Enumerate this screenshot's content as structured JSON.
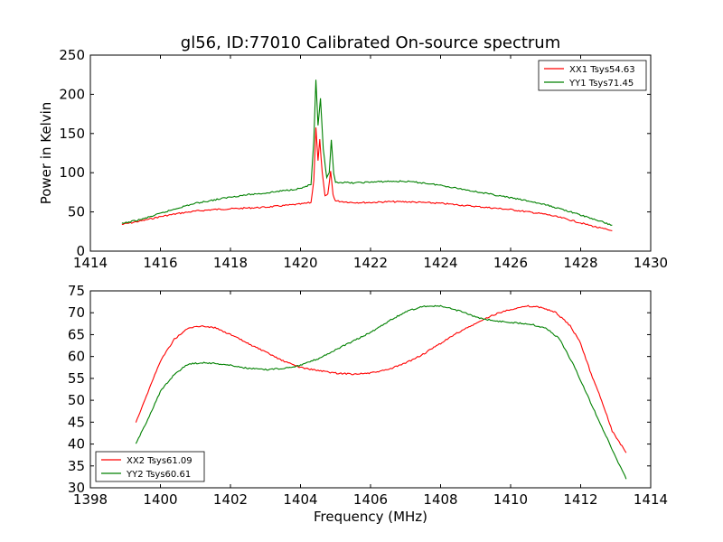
{
  "chart_data": [
    {
      "type": "line",
      "title": "gl56, ID:77010 Calibrated On-source spectrum",
      "xlabel": "",
      "ylabel": "Power in Kelvin",
      "xlim": [
        1414,
        1430
      ],
      "ylim": [
        0,
        250
      ],
      "xticks": [
        1414,
        1416,
        1418,
        1420,
        1422,
        1424,
        1426,
        1428,
        1430
      ],
      "yticks": [
        0,
        50,
        100,
        150,
        200,
        250
      ],
      "grid": false,
      "legend_position": "top-right",
      "series": [
        {
          "name": "XX1 Tsys54.63",
          "color": "#ff0000",
          "points": [
            [
              1414.9,
              34
            ],
            [
              1415.5,
              39
            ],
            [
              1416,
              44
            ],
            [
              1416.5,
              48
            ],
            [
              1417,
              51
            ],
            [
              1417.5,
              53
            ],
            [
              1418,
              54
            ],
            [
              1418.5,
              55
            ],
            [
              1419,
              56
            ],
            [
              1419.5,
              58
            ],
            [
              1420,
              60
            ],
            [
              1420.3,
              62
            ],
            [
              1420.38,
              90
            ],
            [
              1420.44,
              158
            ],
            [
              1420.5,
              115
            ],
            [
              1420.55,
              142
            ],
            [
              1420.62,
              100
            ],
            [
              1420.7,
              70
            ],
            [
              1420.78,
              72
            ],
            [
              1420.86,
              102
            ],
            [
              1420.93,
              72
            ],
            [
              1421,
              64
            ],
            [
              1421.5,
              62
            ],
            [
              1422,
              62
            ],
            [
              1422.5,
              63
            ],
            [
              1423,
              63
            ],
            [
              1423.5,
              62
            ],
            [
              1424,
              61
            ],
            [
              1424.5,
              59
            ],
            [
              1425,
              57
            ],
            [
              1425.5,
              55
            ],
            [
              1426,
              53
            ],
            [
              1426.5,
              50
            ],
            [
              1427,
              47
            ],
            [
              1427.5,
              42
            ],
            [
              1428,
              36
            ],
            [
              1428.5,
              30
            ],
            [
              1428.9,
              26
            ]
          ]
        },
        {
          "name": "YY1 Tsys71.45",
          "color": "#008000",
          "points": [
            [
              1414.9,
              35
            ],
            [
              1415.5,
              41
            ],
            [
              1416,
              48
            ],
            [
              1416.5,
              55
            ],
            [
              1417,
              61
            ],
            [
              1417.5,
              65
            ],
            [
              1418,
              69
            ],
            [
              1418.5,
              72
            ],
            [
              1419,
              74
            ],
            [
              1419.5,
              77
            ],
            [
              1420,
              80
            ],
            [
              1420.3,
              85
            ],
            [
              1420.38,
              140
            ],
            [
              1420.44,
              218
            ],
            [
              1420.5,
              160
            ],
            [
              1420.57,
              195
            ],
            [
              1420.65,
              130
            ],
            [
              1420.75,
              93
            ],
            [
              1420.82,
              100
            ],
            [
              1420.88,
              141
            ],
            [
              1420.95,
              98
            ],
            [
              1421,
              88
            ],
            [
              1421.5,
              87
            ],
            [
              1422,
              88
            ],
            [
              1422.5,
              89
            ],
            [
              1423,
              89
            ],
            [
              1423.5,
              87
            ],
            [
              1424,
              84
            ],
            [
              1424.5,
              80
            ],
            [
              1425,
              76
            ],
            [
              1425.5,
              72
            ],
            [
              1426,
              68
            ],
            [
              1426.5,
              64
            ],
            [
              1427,
              59
            ],
            [
              1427.5,
              53
            ],
            [
              1428,
              46
            ],
            [
              1428.5,
              39
            ],
            [
              1428.9,
              33
            ]
          ]
        }
      ]
    },
    {
      "type": "line",
      "title": "",
      "xlabel": "Frequency (MHz)",
      "ylabel": "",
      "xlim": [
        1398,
        1414
      ],
      "ylim": [
        30,
        75
      ],
      "xticks": [
        1398,
        1400,
        1402,
        1404,
        1406,
        1408,
        1410,
        1412,
        1414
      ],
      "yticks": [
        30,
        35,
        40,
        45,
        50,
        55,
        60,
        65,
        70,
        75
      ],
      "grid": false,
      "legend_position": "bottom-left",
      "series": [
        {
          "name": "XX2 Tsys61.09",
          "color": "#ff0000",
          "points": [
            [
              1399.3,
              45
            ],
            [
              1399.6,
              51
            ],
            [
              1400,
              59
            ],
            [
              1400.4,
              64
            ],
            [
              1400.8,
              66.5
            ],
            [
              1401.2,
              67
            ],
            [
              1401.6,
              66.5
            ],
            [
              1402,
              65
            ],
            [
              1402.5,
              63
            ],
            [
              1403,
              61
            ],
            [
              1403.5,
              59
            ],
            [
              1404,
              57.5
            ],
            [
              1404.5,
              56.8
            ],
            [
              1405,
              56.2
            ],
            [
              1405.5,
              56
            ],
            [
              1406,
              56.2
            ],
            [
              1406.5,
              57
            ],
            [
              1407,
              58.5
            ],
            [
              1407.5,
              60.5
            ],
            [
              1408,
              63
            ],
            [
              1408.5,
              65.5
            ],
            [
              1409,
              67.5
            ],
            [
              1409.5,
              69.5
            ],
            [
              1410,
              70.8
            ],
            [
              1410.5,
              71.5
            ],
            [
              1410.9,
              71.2
            ],
            [
              1411.3,
              70
            ],
            [
              1411.7,
              67
            ],
            [
              1412,
              63
            ],
            [
              1412.3,
              56
            ],
            [
              1412.6,
              50
            ],
            [
              1412.9,
              43
            ],
            [
              1413.3,
              38
            ]
          ]
        },
        {
          "name": "YY2 Tsys60.61",
          "color": "#008000",
          "points": [
            [
              1399.3,
              40
            ],
            [
              1399.6,
              45
            ],
            [
              1400,
              52
            ],
            [
              1400.4,
              56
            ],
            [
              1400.8,
              58.3
            ],
            [
              1401.2,
              58.6
            ],
            [
              1401.6,
              58.4
            ],
            [
              1402,
              58
            ],
            [
              1402.5,
              57.3
            ],
            [
              1403,
              57
            ],
            [
              1403.5,
              57.3
            ],
            [
              1404,
              58
            ],
            [
              1404.5,
              59.5
            ],
            [
              1405,
              61.5
            ],
            [
              1405.5,
              63.5
            ],
            [
              1406,
              65.5
            ],
            [
              1406.5,
              68
            ],
            [
              1407,
              70.2
            ],
            [
              1407.5,
              71.5
            ],
            [
              1408,
              71.5
            ],
            [
              1408.5,
              70.5
            ],
            [
              1409,
              69
            ],
            [
              1409.5,
              68.2
            ],
            [
              1410,
              67.8
            ],
            [
              1410.5,
              67.5
            ],
            [
              1411,
              66.5
            ],
            [
              1411.4,
              64
            ],
            [
              1411.8,
              58
            ],
            [
              1412.2,
              51
            ],
            [
              1412.6,
              44
            ],
            [
              1413,
              37
            ],
            [
              1413.3,
              32
            ]
          ]
        }
      ]
    }
  ]
}
